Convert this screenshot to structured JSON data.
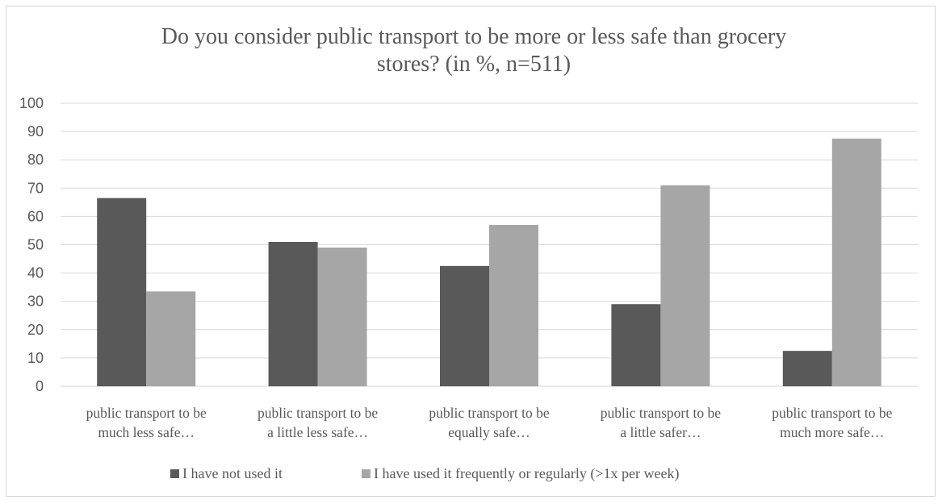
{
  "chart_data": {
    "type": "bar",
    "title_lines": [
      "Do you consider public transport to be more or less safe than grocery",
      "stores? (in %, n=511)"
    ],
    "categories": [
      [
        "public transport to be",
        "much less safe…"
      ],
      [
        "public  transport to be",
        "a little  less safe…"
      ],
      [
        "public transport to be",
        "equally  safe…"
      ],
      [
        "public transport to be",
        "a little  safer…"
      ],
      [
        "public transport to be",
        "much more safe…"
      ]
    ],
    "series": [
      {
        "name": "I have not used it",
        "color": "#595959",
        "values": [
          66.5,
          51,
          42.5,
          29,
          12.5
        ]
      },
      {
        "name": "I have used it frequently or regularly (>1x per week)",
        "color": "#a6a6a6",
        "values": [
          33.5,
          49,
          57,
          71,
          87.5
        ]
      }
    ],
    "ylim": [
      0,
      100
    ],
    "yticks": [
      0,
      10,
      20,
      30,
      40,
      50,
      60,
      70,
      80,
      90,
      100
    ],
    "grid": true,
    "legend_position": "bottom",
    "xlabel": "",
    "ylabel": ""
  }
}
